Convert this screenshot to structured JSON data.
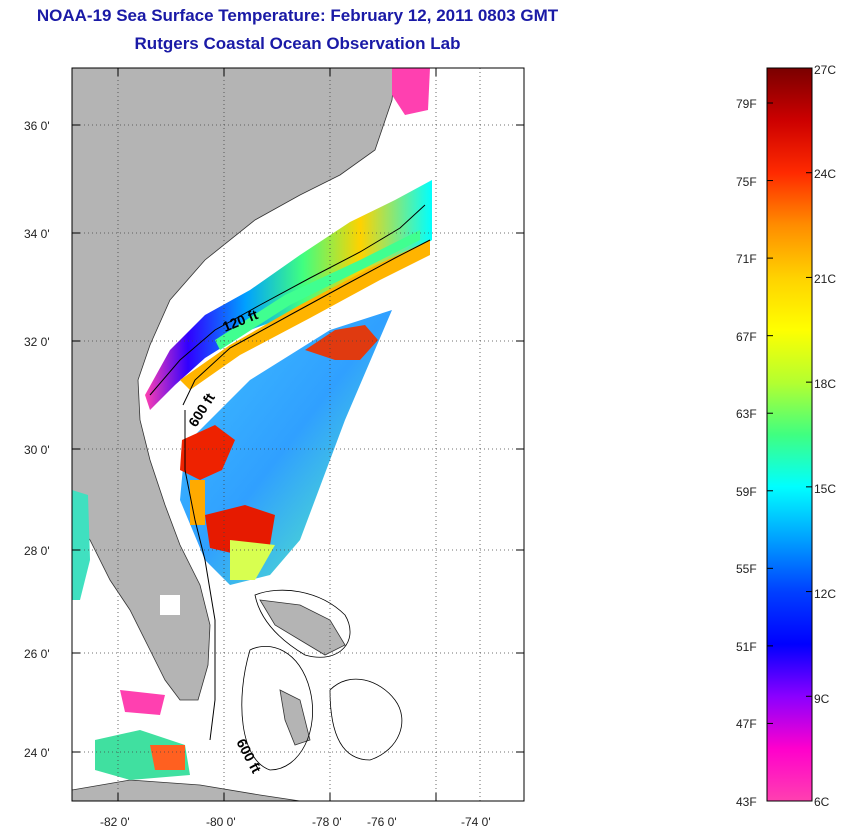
{
  "title": "NOAA-19 Sea Surface Temperature:  February 12, 2011 0803 GMT",
  "subtitle": "Rutgers Coastal Ocean Observation Lab",
  "map": {
    "lat_labels": [
      "36 0'",
      "34 0'",
      "32 0'",
      "30 0'",
      "28 0'",
      "26 0'",
      "24 0'"
    ],
    "lon_labels": [
      "-82 0'",
      "-80 0'",
      "-78 0'",
      "-76 0'",
      "-74 0'"
    ],
    "contour_labels": [
      "120 ft",
      "600 ft",
      "600 ft"
    ],
    "land_color": "#b4b4b4",
    "grid": "dotted"
  },
  "colorbar": {
    "celsius_labels": [
      "27C",
      "24C",
      "21C",
      "18C",
      "15C",
      "12C",
      "9C",
      "6C"
    ],
    "fahrenheit_labels": [
      "79F",
      "75F",
      "71F",
      "67F",
      "63F",
      "59F",
      "55F",
      "51F",
      "47F",
      "43F"
    ],
    "colors_top_to_bottom": [
      "#7a0000",
      "#cc0000",
      "#ff2a00",
      "#ff8c00",
      "#ffd200",
      "#ffff00",
      "#b4ff30",
      "#40ff80",
      "#00ffff",
      "#00a0ff",
      "#0040ff",
      "#0000ff",
      "#8a00ff",
      "#ff00cc",
      "#ff40b0"
    ]
  }
}
